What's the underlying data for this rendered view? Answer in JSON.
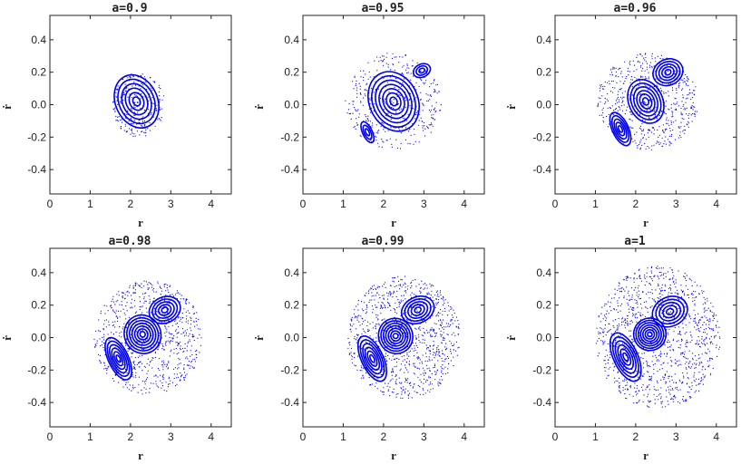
{
  "figure": {
    "panels": [
      {
        "title": "a=0.9",
        "xlabel": "r",
        "ylabel": "ṙ"
      },
      {
        "title": "a=0.95",
        "xlabel": "r",
        "ylabel": "ṙ"
      },
      {
        "title": "a=0.96",
        "xlabel": "r",
        "ylabel": "ṙ"
      },
      {
        "title": "a=0.98",
        "xlabel": "r",
        "ylabel": "ṙ"
      },
      {
        "title": "a=0.99",
        "xlabel": "r",
        "ylabel": "ṙ"
      },
      {
        "title": "a=1",
        "xlabel": "r",
        "ylabel": "ṙ"
      }
    ]
  },
  "chart_data": [
    {
      "type": "scatter",
      "title": "a=0.9",
      "xlabel": "r",
      "ylabel": "ṙ",
      "xlim": [
        0,
        4.5
      ],
      "ylim": [
        -0.55,
        0.55
      ],
      "xticks": [
        "0",
        "1",
        "2",
        "3",
        "4"
      ],
      "yticks": [
        "-0.4",
        "-0.2",
        "0.0",
        "0.2",
        "0.4"
      ],
      "grid": false,
      "color": "#0000ee",
      "islands": [
        {
          "cx": 2.15,
          "cy": 0.02,
          "rx": 0.52,
          "ry": 0.17,
          "rings": 6
        }
      ],
      "chaos_region": {
        "cx": 2.2,
        "cy": 0.0,
        "rx": 0.65,
        "ry": 0.2
      }
    },
    {
      "type": "scatter",
      "title": "a=0.95",
      "xlabel": "r",
      "ylabel": "ṙ",
      "xlim": [
        0,
        4.5
      ],
      "ylim": [
        -0.55,
        0.55
      ],
      "xticks": [
        "0",
        "1",
        "2",
        "3",
        "4"
      ],
      "yticks": [
        "-0.4",
        "-0.2",
        "0.0",
        "0.2",
        "0.4"
      ],
      "grid": false,
      "color": "#0000ee",
      "islands": [
        {
          "cx": 2.25,
          "cy": 0.02,
          "rx": 0.6,
          "ry": 0.19,
          "rings": 7
        },
        {
          "cx": 2.95,
          "cy": 0.21,
          "rx": 0.22,
          "ry": 0.04,
          "rings": 3
        },
        {
          "cx": 1.6,
          "cy": -0.17,
          "rx": 0.12,
          "ry": 0.07,
          "rings": 3
        }
      ],
      "chaos_region": {
        "cx": 2.25,
        "cy": 0.02,
        "rx": 1.2,
        "ry": 0.3
      }
    },
    {
      "type": "scatter",
      "title": "a=0.96",
      "xlabel": "r",
      "ylabel": "ṙ",
      "xlim": [
        0,
        4.5
      ],
      "ylim": [
        -0.55,
        0.55
      ],
      "xticks": [
        "0",
        "1",
        "2",
        "3",
        "4"
      ],
      "yticks": [
        "-0.4",
        "-0.2",
        "0.0",
        "0.2",
        "0.4"
      ],
      "grid": false,
      "color": "#0000ee",
      "islands": [
        {
          "cx": 2.25,
          "cy": 0.02,
          "rx": 0.42,
          "ry": 0.14,
          "rings": 6
        },
        {
          "cx": 2.8,
          "cy": 0.2,
          "rx": 0.38,
          "ry": 0.08,
          "rings": 5
        },
        {
          "cx": 1.62,
          "cy": -0.15,
          "rx": 0.2,
          "ry": 0.11,
          "rings": 5
        }
      ],
      "chaos_region": {
        "cx": 2.3,
        "cy": 0.02,
        "rx": 1.25,
        "ry": 0.3
      }
    },
    {
      "type": "scatter",
      "title": "a=0.98",
      "xlabel": "r",
      "ylabel": "ṙ",
      "xlim": [
        0,
        4.5
      ],
      "ylim": [
        -0.55,
        0.55
      ],
      "xticks": [
        "0",
        "1",
        "2",
        "3",
        "4"
      ],
      "yticks": [
        "-0.4",
        "-0.2",
        "0.0",
        "0.2",
        "0.4"
      ],
      "grid": false,
      "color": "#0000ee",
      "islands": [
        {
          "cx": 2.3,
          "cy": 0.02,
          "rx": 0.45,
          "ry": 0.12,
          "rings": 7
        },
        {
          "cx": 2.85,
          "cy": 0.17,
          "rx": 0.4,
          "ry": 0.08,
          "rings": 5
        },
        {
          "cx": 1.7,
          "cy": -0.13,
          "rx": 0.25,
          "ry": 0.14,
          "rings": 6
        }
      ],
      "chaos_region": {
        "cx": 2.45,
        "cy": 0.0,
        "rx": 1.35,
        "ry": 0.35
      }
    },
    {
      "type": "scatter",
      "title": "a=0.99",
      "xlabel": "r",
      "ylabel": "ṙ",
      "xlim": [
        0,
        4.5
      ],
      "ylim": [
        -0.55,
        0.55
      ],
      "xticks": [
        "0",
        "1",
        "2",
        "3",
        "4"
      ],
      "yticks": [
        "-0.4",
        "-0.2",
        "0.0",
        "0.2",
        "0.4"
      ],
      "grid": false,
      "color": "#0000ee",
      "islands": [
        {
          "cx": 2.3,
          "cy": 0.01,
          "rx": 0.42,
          "ry": 0.11,
          "rings": 7
        },
        {
          "cx": 2.85,
          "cy": 0.17,
          "rx": 0.42,
          "ry": 0.08,
          "rings": 5
        },
        {
          "cx": 1.72,
          "cy": -0.13,
          "rx": 0.27,
          "ry": 0.15,
          "rings": 6
        }
      ],
      "chaos_region": {
        "cx": 2.5,
        "cy": 0.0,
        "rx": 1.4,
        "ry": 0.38
      }
    },
    {
      "type": "scatter",
      "title": "a=1",
      "xlabel": "r",
      "ylabel": "ṙ",
      "xlim": [
        0,
        4.5
      ],
      "ylim": [
        -0.55,
        0.55
      ],
      "xticks": [
        "0",
        "1",
        "2",
        "3",
        "4"
      ],
      "yticks": [
        "-0.4",
        "-0.2",
        "0.0",
        "0.2",
        "0.4"
      ],
      "grid": false,
      "color": "#0000ee",
      "islands": [
        {
          "cx": 2.35,
          "cy": 0.02,
          "rx": 0.4,
          "ry": 0.1,
          "rings": 7
        },
        {
          "cx": 2.85,
          "cy": 0.16,
          "rx": 0.45,
          "ry": 0.09,
          "rings": 5
        },
        {
          "cx": 1.75,
          "cy": -0.12,
          "rx": 0.3,
          "ry": 0.16,
          "rings": 6
        }
      ],
      "chaos_region": {
        "cx": 2.55,
        "cy": 0.0,
        "rx": 1.55,
        "ry": 0.44
      }
    }
  ]
}
